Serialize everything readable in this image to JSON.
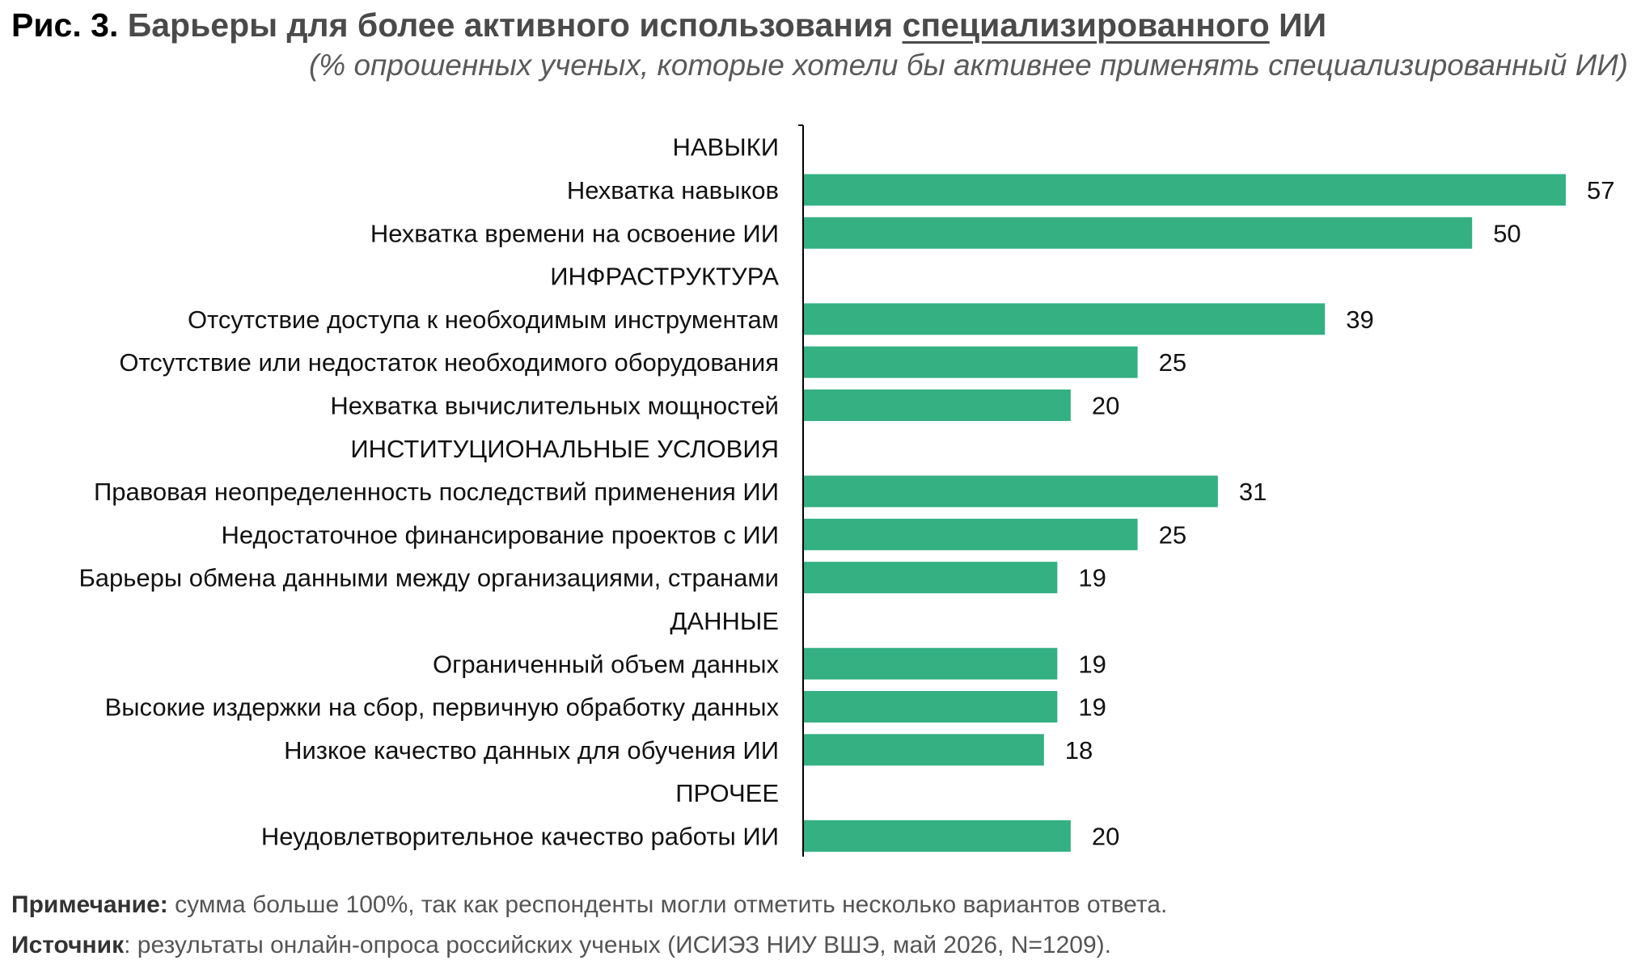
{
  "title": {
    "prefix": "Рис. 3.",
    "main": "Барьеры для более активного использования",
    "underlined": "специализированного",
    "suffix": "ИИ"
  },
  "subtitle": "(% опрошенных ученых, которые хотели бы активнее применять специализированный ИИ)",
  "colors": {
    "bar": "#34B083",
    "axis": "#000000"
  },
  "chart_data": {
    "type": "bar",
    "orientation": "horizontal",
    "categories": [
      "НАВЫКИ",
      "Нехватка навыков",
      "Нехватка времени на освоение ИИ",
      "ИНФРАСТРУКТУРА",
      "Отсутствие доступа к необходимым инструментам",
      "Отсутствие или недостаток необходимого оборудования",
      "Нехватка вычислительных мощностей",
      "ИНСТИТУЦИОНАЛЬНЫЕ УСЛОВИЯ",
      "Правовая неопределенность последствий применения ИИ",
      "Недостаточное финансирование проектов с ИИ",
      "Барьеры обмена данными между организациями, странами",
      "ДАННЫЕ",
      "Ограниченный объем данных",
      "Высокие издержки на сбор, первичную обработку данных",
      "Низкое качество данных для обучения ИИ",
      "ПРОЧЕЕ",
      "Неудовлетворительное качество работы ИИ"
    ],
    "values": [
      null,
      57,
      50,
      null,
      39,
      25,
      20,
      null,
      31,
      25,
      19,
      null,
      19,
      19,
      18,
      null,
      20
    ],
    "data_labels": [
      "",
      "57",
      "50",
      "",
      "39",
      "25",
      "20",
      "",
      "31",
      "25",
      "19",
      "",
      "19",
      "19",
      "18",
      "",
      "20"
    ],
    "xlim": [
      0,
      60
    ],
    "grid": false,
    "legend": "none",
    "title": "Барьеры для более активного использования специализированного ИИ",
    "xlabel": "",
    "ylabel": ""
  },
  "notes": {
    "note_label": "Примечание:",
    "note_text": " сумма больше 100%, так как респонденты могли отметить несколько вариантов ответа.",
    "source_label": "Источник",
    "source_text": ": результаты онлайн-опроса российских ученых (ИСИЭЗ НИУ ВШЭ, май 2026, N=1209)."
  }
}
